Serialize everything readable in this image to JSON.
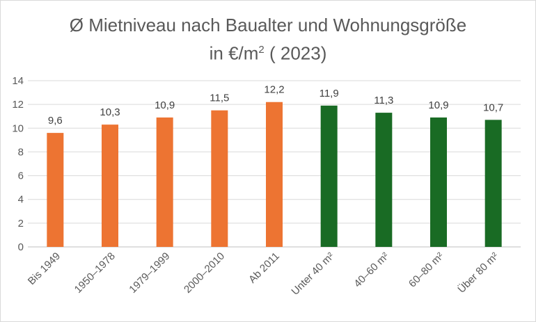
{
  "chart_data": {
    "type": "bar",
    "title_line1": "Ø Mietniveau nach Baualter und Wohnungsgröße",
    "title_line2_prefix": "in €/m",
    "title_line2_sup": "2",
    "title_line2_suffix": " ( 2023)",
    "categories": [
      "Bis 1949",
      "1950–1978",
      "1979–1999",
      "2000–2010",
      "Ab 2011",
      "Unter 40 m²",
      "40–60 m²",
      "60–80 m²",
      "Über 80 m²"
    ],
    "values": [
      9.6,
      10.3,
      10.9,
      11.5,
      12.2,
      11.9,
      11.3,
      10.9,
      10.7
    ],
    "data_labels": [
      "9,6",
      "10,3",
      "10,9",
      "11,5",
      "12,2",
      "11,9",
      "11,3",
      "10,9",
      "10,7"
    ],
    "bar_colors": [
      "#ED7432",
      "#ED7432",
      "#ED7432",
      "#ED7432",
      "#ED7432",
      "#196B24",
      "#196B24",
      "#196B24",
      "#196B24"
    ],
    "yticks": [
      "0",
      "2",
      "4",
      "6",
      "8",
      "10",
      "12",
      "14"
    ],
    "ylim": [
      0,
      14
    ],
    "grid": true,
    "legend": "none"
  }
}
